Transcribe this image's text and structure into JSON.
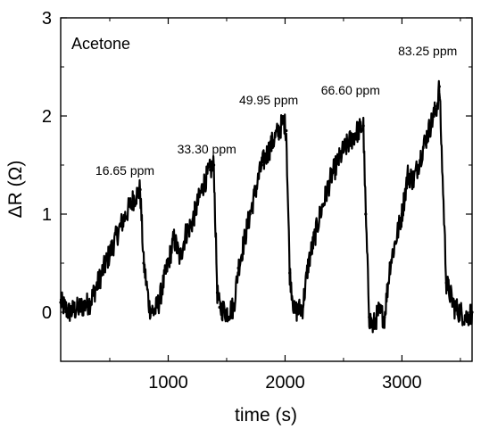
{
  "chart_data": {
    "type": "line",
    "title": "",
    "panel_label": "Acetone",
    "xlabel": "time (s)",
    "ylabel": "ΔR (Ω)",
    "xlim": [
      80,
      3600
    ],
    "ylim": [
      -0.5,
      3
    ],
    "x_ticks": [
      1000,
      2000,
      3000
    ],
    "x_tick_labels": [
      "1000",
      "2000",
      "3000"
    ],
    "x_minor_ticks": [
      500,
      1500,
      2500,
      3500
    ],
    "y_ticks": [
      0,
      1,
      2,
      3
    ],
    "y_tick_labels": [
      "0",
      "1",
      "2",
      "3"
    ],
    "y_minor_ticks": [
      -0.5,
      0.5,
      1.5,
      2.5
    ],
    "grid": false,
    "legend": "none",
    "series": [
      {
        "color": "#000000",
        "x": [
          80,
          150,
          250,
          330,
          400,
          500,
          600,
          700,
          760,
          790,
          840,
          880,
          920,
          1000,
          1050,
          1100,
          1150,
          1200,
          1250,
          1300,
          1360,
          1390,
          1420,
          1440,
          1500,
          1560,
          1600,
          1700,
          1800,
          1900,
          1990,
          2010,
          2040,
          2080,
          2150,
          2200,
          2300,
          2400,
          2500,
          2600,
          2670,
          2690,
          2720,
          2750,
          2800,
          2850,
          2900,
          3000,
          3050,
          3100,
          3200,
          3300,
          3320,
          3380,
          3450,
          3550,
          3600
        ],
        "y": [
          0.1,
          0.0,
          0.05,
          0.1,
          0.3,
          0.6,
          0.9,
          1.15,
          1.25,
          0.5,
          0.05,
          0.0,
          0.1,
          0.5,
          0.75,
          0.55,
          0.8,
          0.9,
          1.1,
          1.3,
          1.45,
          1.5,
          0.2,
          0.05,
          0.0,
          0.05,
          0.45,
          1.0,
          1.5,
          1.75,
          1.95,
          1.85,
          0.4,
          0.0,
          0.05,
          0.5,
          1.0,
          1.4,
          1.65,
          1.82,
          1.9,
          1.0,
          -0.05,
          -0.15,
          0.0,
          -0.05,
          0.5,
          1.0,
          1.4,
          1.35,
          1.75,
          2.1,
          2.3,
          0.3,
          0.05,
          -0.05,
          0.0
        ]
      }
    ],
    "annotations": [
      {
        "text": "16.65 ppm",
        "x": 630,
        "y": 1.4
      },
      {
        "text": "33.30 ppm",
        "x": 1330,
        "y": 1.62
      },
      {
        "text": "49.95 ppm",
        "x": 1860,
        "y": 2.12
      },
      {
        "text": "66.60 ppm",
        "x": 2560,
        "y": 2.22
      },
      {
        "text": "83.25 ppm",
        "x": 3220,
        "y": 2.62
      }
    ]
  }
}
